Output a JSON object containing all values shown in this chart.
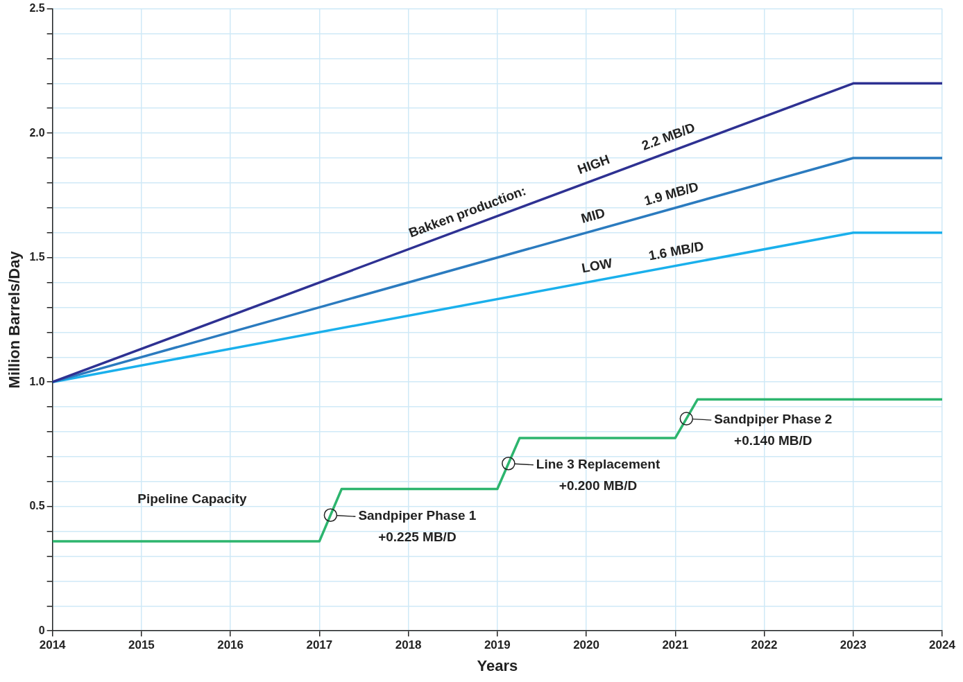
{
  "chart_data": {
    "type": "line",
    "xlabel": "Years",
    "ylabel": "Million Barrels/Day",
    "xlim": [
      2014,
      2024
    ],
    "xticks": [
      2014,
      2015,
      2016,
      2017,
      2018,
      2019,
      2020,
      2021,
      2022,
      2023,
      2024
    ],
    "ylim": [
      0,
      2.5
    ],
    "yticks": [
      0,
      {
        "value": 0.1,
        "label": null
      },
      {
        "value": 0.2,
        "label": null
      },
      {
        "value": 0.3,
        "label": null
      },
      {
        "value": 0.4,
        "label": null
      },
      0.5,
      {
        "value": 0.6,
        "label": null
      },
      {
        "value": 0.7,
        "label": null
      },
      {
        "value": 0.8,
        "label": null
      },
      {
        "value": 0.9,
        "label": null
      },
      {
        "value": 1.0,
        "label": "1.0"
      },
      {
        "value": 1.1,
        "label": null
      },
      {
        "value": 1.2,
        "label": null
      },
      {
        "value": 1.3,
        "label": null
      },
      {
        "value": 1.4,
        "label": null
      },
      1.5,
      {
        "value": 1.6,
        "label": null
      },
      {
        "value": 1.7,
        "label": null
      },
      {
        "value": 1.8,
        "label": null
      },
      {
        "value": 1.9,
        "label": null
      },
      {
        "value": 2.0,
        "label": "2.0"
      },
      {
        "value": 2.1,
        "label": null
      },
      {
        "value": 2.2,
        "label": null
      },
      {
        "value": 2.3,
        "label": null
      },
      {
        "value": 2.4,
        "label": null
      },
      2.5
    ],
    "grid": true,
    "legend": false,
    "marker": "none",
    "line_style": "solid",
    "series": [
      {
        "color": "#2e3192",
        "x": [
          2014,
          2023,
          2024
        ],
        "values": [
          1.0,
          2.2,
          2.2
        ]
      },
      {
        "color": "#2b7bbf",
        "x": [
          2014,
          2023,
          2024
        ],
        "values": [
          1.0,
          1.9,
          1.9
        ]
      },
      {
        "color": "#1ab0ec",
        "x": [
          2014,
          2023,
          2024
        ],
        "values": [
          1.0,
          1.6,
          1.6
        ]
      },
      {
        "color": "#2db56e",
        "x": [
          2014,
          2017,
          2017.25,
          2019,
          2019.25,
          2021,
          2021.25,
          2024
        ],
        "values": [
          0.36,
          0.36,
          0.57,
          0.57,
          0.775,
          0.775,
          0.93,
          0.93
        ]
      }
    ],
    "annotations": [
      {
        "text": "Bakken production:",
        "x": 2018.72,
        "y": 1.629
      },
      {
        "text": "HIGH",
        "x": 2020.14,
        "y": 1.819
      },
      {
        "text": "2.2 MB/D",
        "x": 2020.98,
        "y": 1.931
      },
      {
        "text": "MID",
        "x": 2020.12,
        "y": 1.612
      },
      {
        "text": "1.9 MB/D",
        "x": 2021.0,
        "y": 1.7
      },
      {
        "text": "LOW",
        "x": 2020.15,
        "y": 1.41
      },
      {
        "text": "1.6 MB/D",
        "x": 2021.04,
        "y": 1.469
      },
      {
        "text": "Pipeline Capacity",
        "x": 2015.57,
        "y": 0.36
      },
      {
        "text": "Sandpiper Phase 1\n+0.225 MB/D",
        "x": 2017.125,
        "y": 0.465
      },
      {
        "text": "Line 3 Replacement\n+0.200 MB/D",
        "x": 2019.125,
        "y": 0.6725
      },
      {
        "text": "Sandpiper Phase 2\n+0.140 MB/D",
        "x": 2021.125,
        "y": 0.8525
      }
    ]
  }
}
